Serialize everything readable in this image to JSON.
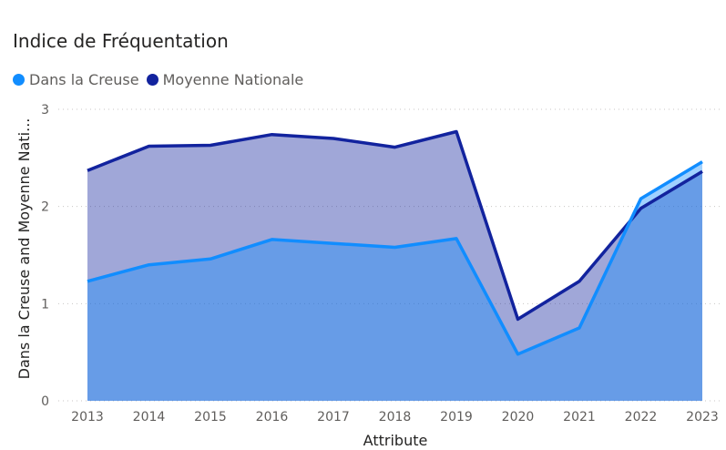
{
  "chart_data": {
    "type": "area",
    "title": "Indice de Fréquentation",
    "xlabel": "Attribute",
    "ylabel": "Dans la Creuse and Moyenne Nati...",
    "categories": [
      "2013",
      "2014",
      "2015",
      "2016",
      "2017",
      "2018",
      "2019",
      "2020",
      "2021",
      "2022",
      "2023"
    ],
    "ylim": [
      0,
      3
    ],
    "yticks": [
      "0",
      "1",
      "2",
      "3"
    ],
    "grid": true,
    "legend_position": "top-left",
    "series": [
      {
        "name": "Dans la Creuse",
        "color": "#118DFF",
        "values": [
          1.23,
          1.4,
          1.46,
          1.66,
          1.62,
          1.58,
          1.67,
          0.48,
          0.75,
          2.08,
          2.46
        ]
      },
      {
        "name": "Moyenne Nationale",
        "color": "#12239E",
        "values": [
          2.37,
          2.62,
          2.63,
          2.74,
          2.7,
          2.61,
          2.77,
          0.84,
          1.23,
          1.98,
          2.36
        ]
      }
    ]
  }
}
